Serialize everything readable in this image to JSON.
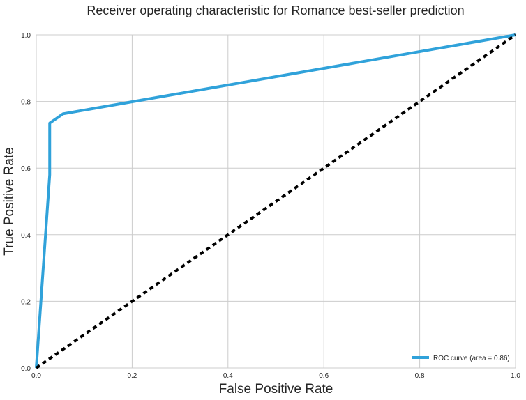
{
  "chart_data": {
    "type": "line",
    "title": "Receiver operating characteristic for Romance best-seller prediction",
    "xlabel": "False Positive Rate",
    "ylabel": "True Positive Rate",
    "xlim": [
      0.0,
      1.0
    ],
    "ylim": [
      0.0,
      1.0
    ],
    "x_ticks": [
      "0.0",
      "0.2",
      "0.4",
      "0.6",
      "0.8",
      "1.0"
    ],
    "y_ticks": [
      "0.0",
      "0.2",
      "0.4",
      "0.6",
      "0.8",
      "1.0"
    ],
    "grid": true,
    "legend_position": "lower-right",
    "series": [
      {
        "name": "ROC curve (area = 0.86)",
        "color": "#30a2da",
        "style": "solid",
        "x": [
          0.0,
          0.028,
          0.028,
          0.028,
          0.056,
          1.0
        ],
        "y": [
          0.0,
          0.58,
          0.58,
          0.735,
          0.763,
          1.0
        ]
      },
      {
        "name": "",
        "color": "#000000",
        "style": "dashed",
        "x": [
          0.0,
          1.0
        ],
        "y": [
          0.0,
          1.0
        ]
      }
    ]
  }
}
